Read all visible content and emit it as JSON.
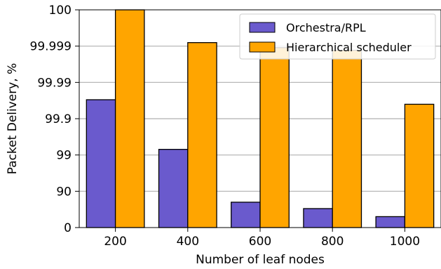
{
  "chart_data": {
    "type": "bar",
    "xlabel": "Number of leaf nodes",
    "ylabel": "Packet Delivery, %",
    "yscale": "log-complement (tick labels 0, 90, 99, 99.9, 99.99, 99.999, 100)",
    "categories": [
      "200",
      "400",
      "600",
      "800",
      "1000"
    ],
    "yticks": [
      "0",
      "90",
      "99",
      "99.9",
      "99.99",
      "99.999",
      "100"
    ],
    "series": [
      {
        "name": "Orchestra/RPL",
        "color": "#6a5acd",
        "values": [
          99.97,
          99.3,
          80,
          70,
          50
        ]
      },
      {
        "name": "Hierarchical scheduler",
        "color": "#ffa500",
        "values": [
          100,
          99.9992,
          99.9989,
          99.9987,
          99.96
        ]
      }
    ],
    "legend_position": "top-right",
    "grid": "horizontal"
  }
}
